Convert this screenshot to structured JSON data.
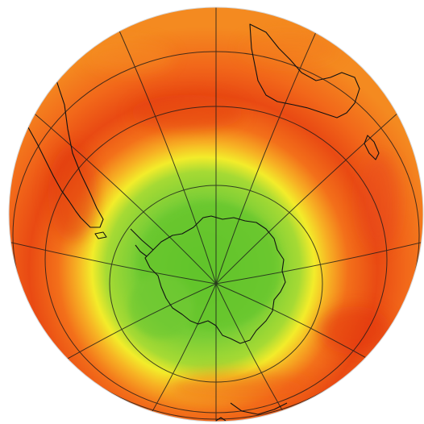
{
  "map": {
    "projection": "orthographic",
    "view": "south-polar",
    "subject": "ozone-column-field",
    "colors": {
      "background": "#ffffff",
      "field_high": "#f05a14",
      "field_peak": "#e83a12",
      "field_mid": "#f58a1e",
      "ring_yellow": "#f3ec2a",
      "field_low": "#7fd03a",
      "field_core": "#68c72e",
      "graticule": "#1a1a1a",
      "coastline": "#111111"
    },
    "graticule": {
      "meridian_step_deg": 30,
      "parallel_step_deg": 15
    },
    "land_masses": [
      "antarctica-coast",
      "south-america-coast",
      "australia-coast",
      "africa-coast"
    ]
  }
}
